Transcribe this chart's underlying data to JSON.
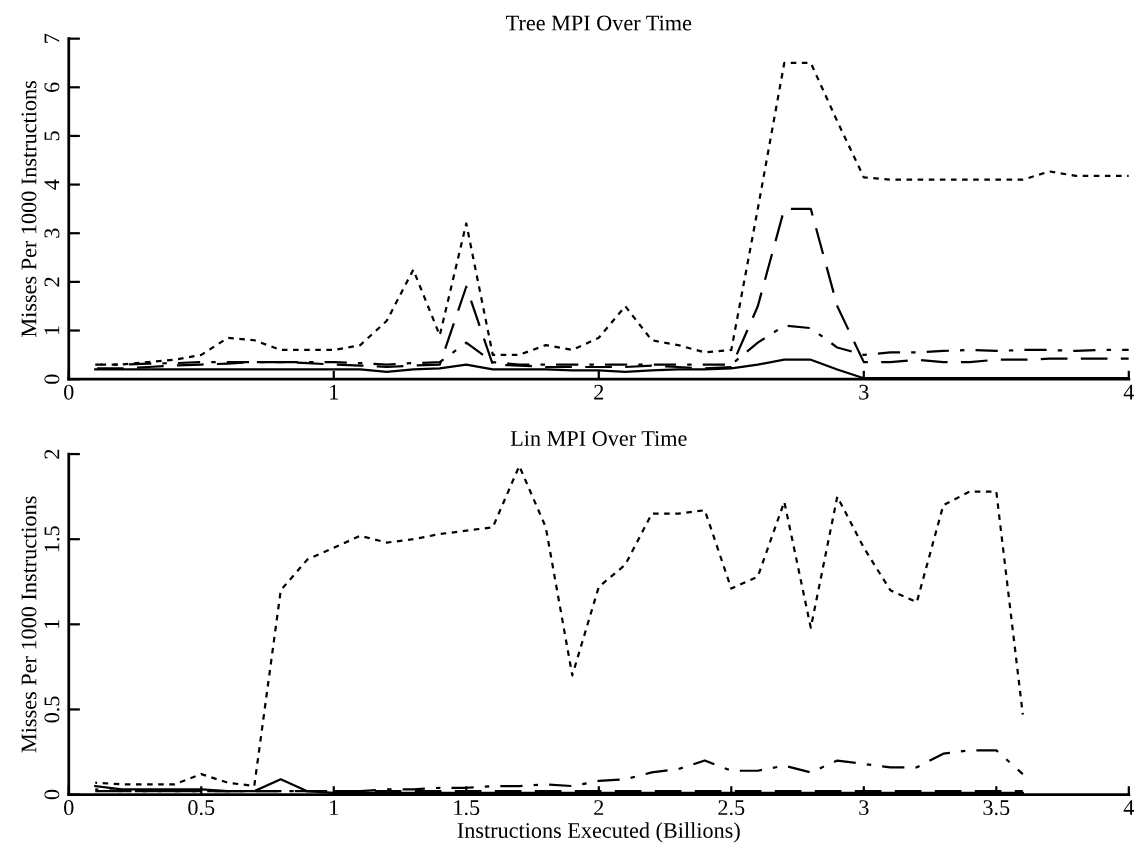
{
  "chart_data": [
    {
      "type": "line",
      "title": "Tree MPI Over Time",
      "ylabel": "Misses Per 1000 Instructions",
      "x": [
        0.1,
        0.2,
        0.3,
        0.4,
        0.5,
        0.6,
        0.7,
        0.8,
        0.9,
        1.0,
        1.1,
        1.2,
        1.3,
        1.4,
        1.5,
        1.6,
        1.7,
        1.8,
        1.9,
        2.0,
        2.1,
        2.2,
        2.3,
        2.4,
        2.5,
        2.6,
        2.7,
        2.8,
        2.9,
        3.0,
        3.1,
        3.2,
        3.3,
        3.4,
        3.5,
        3.6,
        3.7,
        3.8,
        3.9,
        4.0
      ],
      "xlim": [
        0,
        4
      ],
      "xticks": [
        0,
        1,
        2,
        3,
        4
      ],
      "ylim": [
        0,
        7
      ],
      "yticks": [
        0,
        1,
        2,
        3,
        4,
        5,
        6,
        7
      ],
      "grid": false,
      "marker": "none",
      "series": [
        {
          "color": "#000000",
          "line_style": "dotted",
          "values": [
            0.3,
            0.3,
            0.35,
            0.4,
            0.5,
            0.85,
            0.8,
            0.6,
            0.6,
            0.6,
            0.7,
            1.2,
            2.25,
            0.9,
            3.2,
            0.5,
            0.5,
            0.7,
            0.6,
            0.85,
            1.5,
            0.8,
            0.7,
            0.55,
            0.6,
            3.5,
            6.5,
            6.5,
            5.3,
            4.15,
            4.1,
            4.1,
            4.1,
            4.1,
            4.1,
            4.1,
            4.27,
            4.18,
            4.18,
            4.18
          ]
        },
        {
          "color": "#000000",
          "line_style": "dashed",
          "values": [
            0.22,
            0.22,
            0.25,
            0.28,
            0.3,
            0.32,
            0.35,
            0.35,
            0.33,
            0.3,
            0.28,
            0.25,
            0.28,
            0.3,
            1.9,
            0.3,
            0.28,
            0.25,
            0.25,
            0.25,
            0.25,
            0.28,
            0.25,
            0.22,
            0.25,
            1.5,
            3.5,
            3.5,
            1.5,
            0.35,
            0.35,
            0.4,
            0.35,
            0.35,
            0.4,
            0.4,
            0.42,
            0.42,
            0.42,
            0.42
          ]
        },
        {
          "color": "#000000",
          "line_style": "dashdot",
          "values": [
            0.3,
            0.3,
            0.32,
            0.33,
            0.35,
            0.35,
            0.35,
            0.35,
            0.35,
            0.35,
            0.33,
            0.3,
            0.33,
            0.35,
            0.75,
            0.35,
            0.3,
            0.3,
            0.3,
            0.3,
            0.3,
            0.3,
            0.3,
            0.3,
            0.3,
            0.75,
            1.1,
            1.05,
            0.65,
            0.5,
            0.55,
            0.55,
            0.58,
            0.6,
            0.58,
            0.6,
            0.6,
            0.58,
            0.6,
            0.6
          ]
        },
        {
          "color": "#000000",
          "line_style": "solid",
          "values": [
            0.2,
            0.2,
            0.2,
            0.2,
            0.2,
            0.2,
            0.2,
            0.2,
            0.2,
            0.2,
            0.2,
            0.15,
            0.2,
            0.22,
            0.3,
            0.2,
            0.2,
            0.2,
            0.18,
            0.18,
            0.15,
            0.18,
            0.2,
            0.2,
            0.22,
            0.3,
            0.4,
            0.4,
            0.2,
            0.02,
            0.02,
            0.02,
            0.02,
            0.02,
            0.02,
            0.02,
            0.02,
            0.02,
            0.02,
            0.02
          ]
        }
      ]
    },
    {
      "type": "line",
      "title": "Lin MPI Over Time",
      "xlabel": "Instructions Executed (Billions)",
      "ylabel": "Misses Per 1000 Instructions",
      "x": [
        0.1,
        0.2,
        0.3,
        0.4,
        0.5,
        0.6,
        0.7,
        0.8,
        0.9,
        1.0,
        1.1,
        1.2,
        1.3,
        1.4,
        1.5,
        1.6,
        1.7,
        1.8,
        1.9,
        2.0,
        2.1,
        2.2,
        2.3,
        2.4,
        2.5,
        2.6,
        2.7,
        2.8,
        2.9,
        3.0,
        3.1,
        3.2,
        3.3,
        3.4,
        3.5,
        3.6
      ],
      "xlim": [
        0,
        4
      ],
      "xticks": [
        0,
        0.5,
        1,
        1.5,
        2,
        2.5,
        3,
        3.5,
        4
      ],
      "ylim": [
        0,
        2
      ],
      "yticks": [
        0,
        0.5,
        1,
        1.5,
        2
      ],
      "grid": false,
      "marker": "none",
      "series": [
        {
          "color": "#000000",
          "line_style": "dotted",
          "values": [
            0.07,
            0.06,
            0.06,
            0.06,
            0.12,
            0.07,
            0.05,
            1.2,
            1.38,
            1.45,
            1.52,
            1.48,
            1.5,
            1.53,
            1.55,
            1.57,
            1.93,
            1.57,
            0.7,
            1.22,
            1.35,
            1.65,
            1.65,
            1.67,
            1.21,
            1.28,
            1.72,
            0.98,
            1.75,
            1.45,
            1.2,
            1.13,
            1.7,
            1.78,
            1.78,
            0.47
          ]
        },
        {
          "color": "#000000",
          "line_style": "dashed",
          "values": [
            0.02,
            0.02,
            0.02,
            0.02,
            0.02,
            0.02,
            0.02,
            0.02,
            0.02,
            0.02,
            0.02,
            0.02,
            0.02,
            0.02,
            0.02,
            0.02,
            0.02,
            0.02,
            0.02,
            0.02,
            0.02,
            0.02,
            0.02,
            0.02,
            0.02,
            0.02,
            0.02,
            0.02,
            0.02,
            0.02,
            0.02,
            0.02,
            0.02,
            0.02,
            0.02,
            0.02
          ]
        },
        {
          "color": "#000000",
          "line_style": "dashdot",
          "values": [
            0.03,
            0.02,
            0.02,
            0.02,
            0.02,
            0.02,
            0.02,
            0.02,
            0.02,
            0.02,
            0.02,
            0.03,
            0.03,
            0.04,
            0.04,
            0.05,
            0.05,
            0.06,
            0.05,
            0.08,
            0.09,
            0.13,
            0.15,
            0.2,
            0.14,
            0.14,
            0.17,
            0.13,
            0.2,
            0.18,
            0.16,
            0.16,
            0.24,
            0.26,
            0.26,
            0.12
          ]
        },
        {
          "color": "#000000",
          "line_style": "solid",
          "values": [
            0.05,
            0.03,
            0.03,
            0.03,
            0.03,
            0.02,
            0.02,
            0.09,
            0.02,
            0.01,
            0.01,
            0.01,
            0.01,
            0.01,
            0.01,
            0.01,
            0.01,
            0.01,
            0.01,
            0.01,
            0.01,
            0.01,
            0.01,
            0.01,
            0.01,
            0.01,
            0.01,
            0.01,
            0.01,
            0.01,
            0.01,
            0.01,
            0.01,
            0.01,
            0.01,
            0.01
          ]
        }
      ]
    }
  ]
}
